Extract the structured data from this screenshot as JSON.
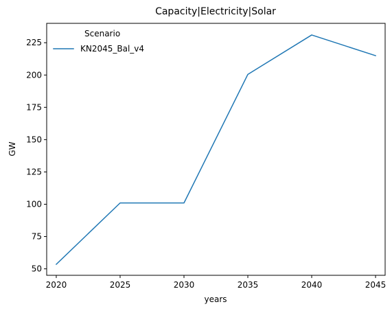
{
  "chart_data": {
    "type": "line",
    "title": "Capacity|Electricity|Solar",
    "xlabel": "years",
    "ylabel": "GW",
    "x": [
      2020,
      2025,
      2030,
      2035,
      2040,
      2045
    ],
    "xticks": [
      "2020",
      "2025",
      "2030",
      "2035",
      "2040",
      "2045"
    ],
    "yticks": [
      "50",
      "75",
      "100",
      "125",
      "150",
      "175",
      "200",
      "225"
    ],
    "xlim": [
      2019.25,
      2045.75
    ],
    "ylim": [
      45,
      240
    ],
    "grid": false,
    "legend": {
      "title": "Scenario",
      "placement": "top-left"
    },
    "series": [
      {
        "name": "KN2045_Bal_v4",
        "color": "#1f77b4",
        "values": [
          53.5,
          101,
          101,
          200.5,
          231,
          215
        ]
      }
    ]
  }
}
